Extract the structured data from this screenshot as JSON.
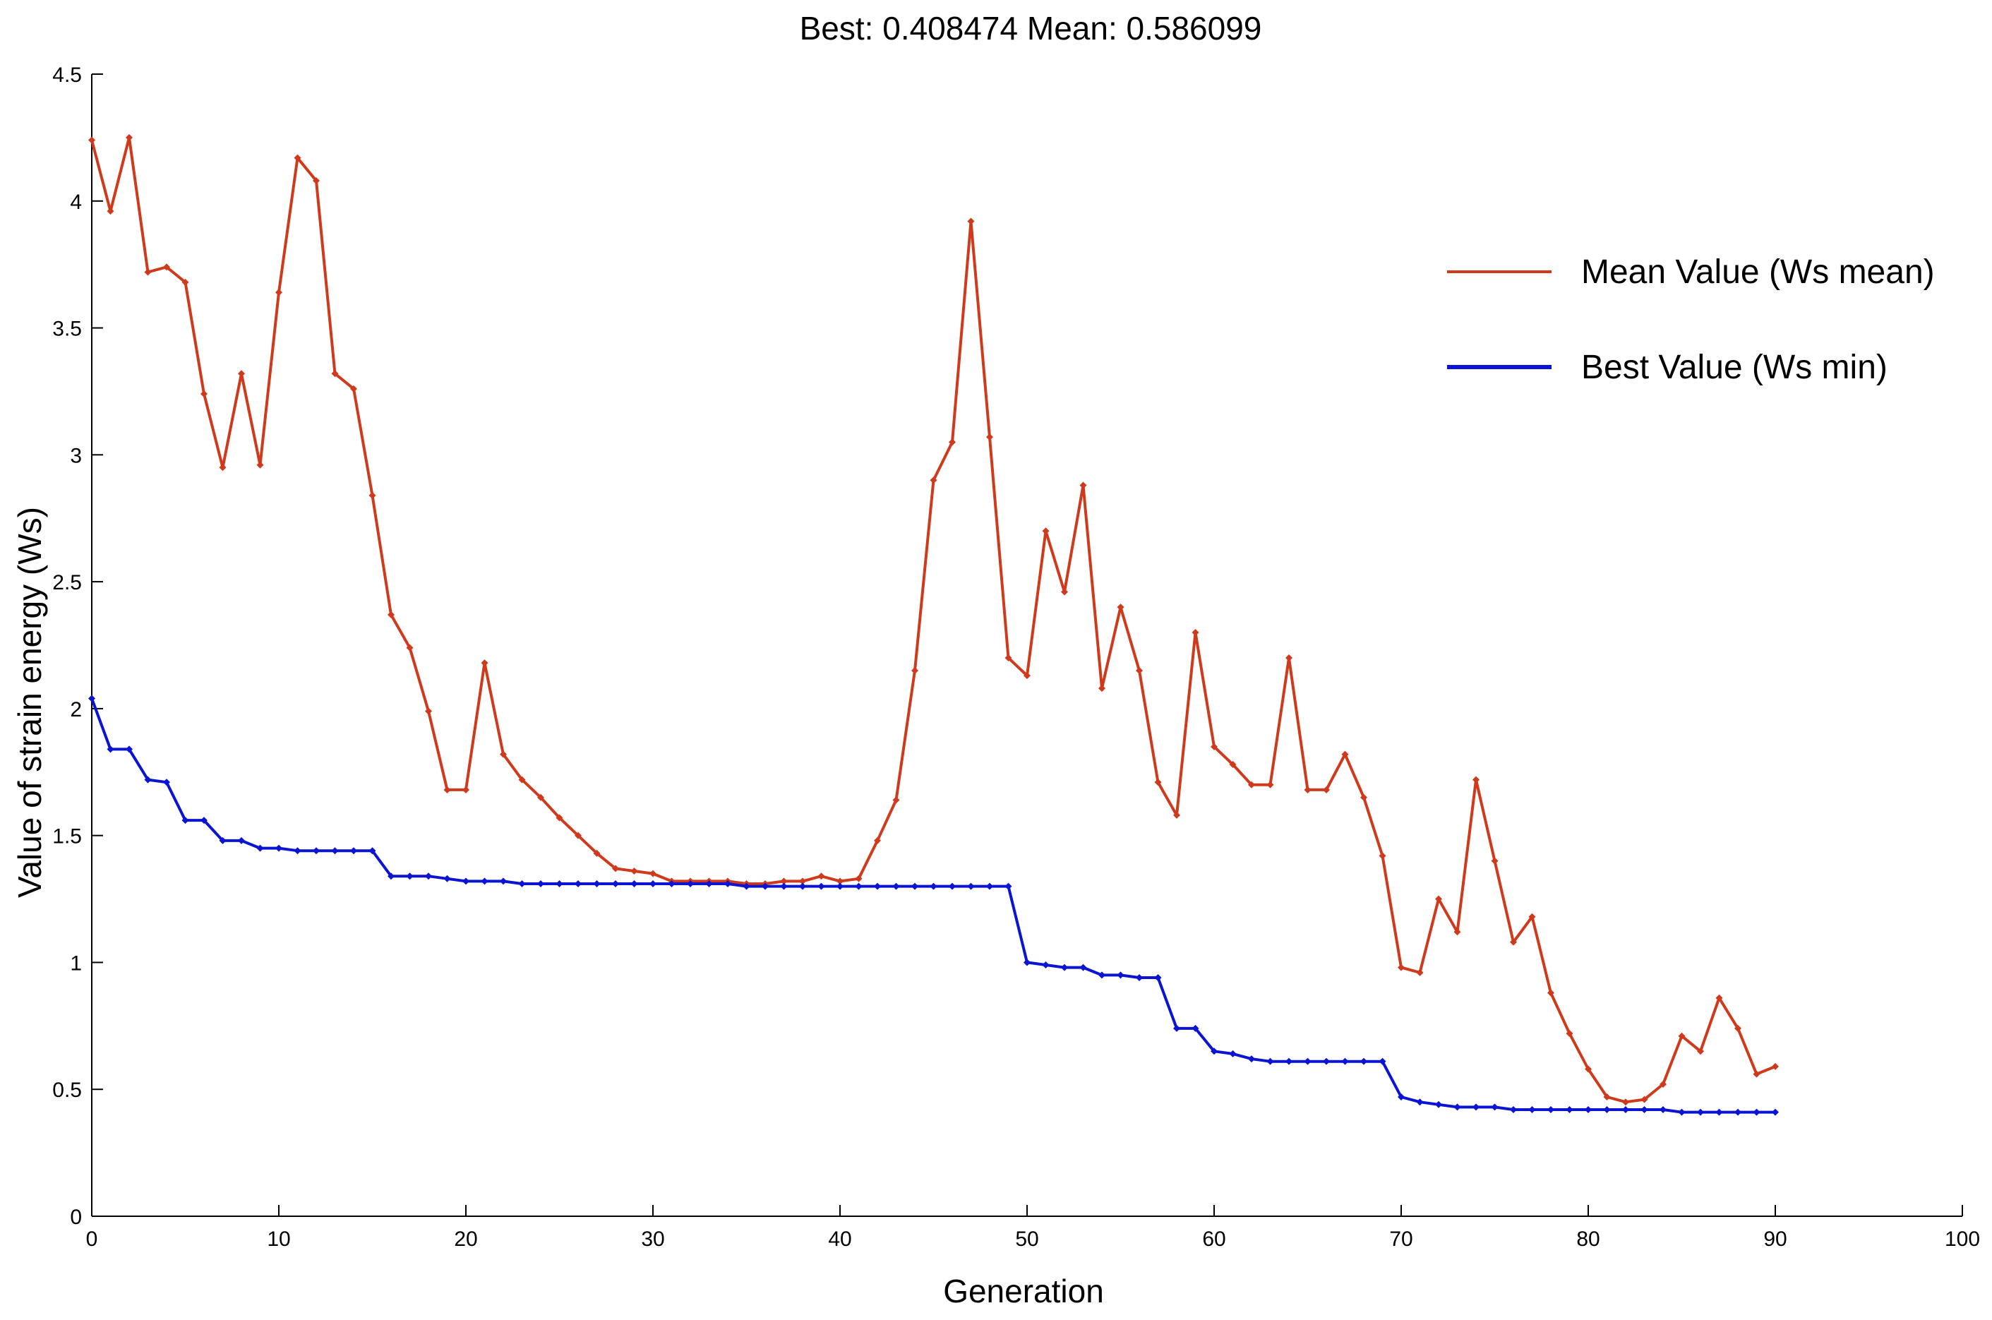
{
  "chart_data": {
    "type": "line",
    "title": "Best: 0.408474    Mean: 0.586099",
    "xlabel": "Generation",
    "ylabel": "Value of strain energy (Ws)",
    "xlim": [
      0,
      100
    ],
    "ylim": [
      0,
      4.5
    ],
    "xticks": [
      0,
      10,
      20,
      30,
      40,
      50,
      60,
      70,
      80,
      90,
      100
    ],
    "yticks": [
      0,
      0.5,
      1,
      1.5,
      2,
      2.5,
      3,
      3.5,
      4,
      4.5
    ],
    "ytick_labels": [
      "0",
      "0.5",
      "1",
      "1.5",
      "2",
      "2.5",
      "3",
      "3.5",
      "4",
      "4.5"
    ],
    "grid": false,
    "legend_position": "top-right",
    "series": [
      {
        "name": "Mean Value (Ws mean)",
        "color": "#d03a1c",
        "values": [
          4.24,
          3.96,
          4.25,
          3.72,
          3.74,
          3.68,
          3.24,
          2.95,
          3.32,
          2.96,
          3.64,
          4.17,
          4.08,
          3.32,
          3.26,
          2.84,
          2.37,
          2.24,
          1.99,
          1.68,
          1.68,
          2.18,
          1.82,
          1.72,
          1.65,
          1.57,
          1.5,
          1.43,
          1.37,
          1.36,
          1.35,
          1.32,
          1.32,
          1.32,
          1.32,
          1.31,
          1.31,
          1.32,
          1.32,
          1.34,
          1.32,
          1.33,
          1.48,
          1.64,
          2.15,
          2.9,
          3.05,
          3.92,
          3.07,
          2.2,
          2.13,
          2.7,
          2.46,
          2.88,
          2.08,
          2.4,
          2.15,
          1.71,
          1.58,
          2.3,
          1.85,
          1.78,
          1.7,
          1.7,
          2.2,
          1.68,
          1.68,
          1.82,
          1.65,
          1.42,
          0.98,
          0.96,
          1.25,
          1.12,
          1.72,
          1.4,
          1.08,
          1.18,
          0.88,
          0.72,
          0.58,
          0.47,
          0.45,
          0.46,
          0.52,
          0.71,
          0.65,
          0.86,
          0.74,
          0.56,
          0.59
        ]
      },
      {
        "name": "Best Value (Ws min)",
        "color": "#0a14d2",
        "values": [
          2.04,
          1.84,
          1.84,
          1.72,
          1.71,
          1.56,
          1.56,
          1.48,
          1.48,
          1.45,
          1.45,
          1.44,
          1.44,
          1.44,
          1.44,
          1.44,
          1.34,
          1.34,
          1.34,
          1.33,
          1.32,
          1.32,
          1.32,
          1.31,
          1.31,
          1.31,
          1.31,
          1.31,
          1.31,
          1.31,
          1.31,
          1.31,
          1.31,
          1.31,
          1.31,
          1.3,
          1.3,
          1.3,
          1.3,
          1.3,
          1.3,
          1.3,
          1.3,
          1.3,
          1.3,
          1.3,
          1.3,
          1.3,
          1.3,
          1.3,
          1.0,
          0.99,
          0.98,
          0.98,
          0.95,
          0.95,
          0.94,
          0.94,
          0.74,
          0.74,
          0.65,
          0.64,
          0.62,
          0.61,
          0.61,
          0.61,
          0.61,
          0.61,
          0.61,
          0.61,
          0.47,
          0.45,
          0.44,
          0.43,
          0.43,
          0.43,
          0.42,
          0.42,
          0.42,
          0.42,
          0.42,
          0.42,
          0.42,
          0.42,
          0.42,
          0.41,
          0.41,
          0.41,
          0.41,
          0.41,
          0.41
        ]
      }
    ]
  }
}
